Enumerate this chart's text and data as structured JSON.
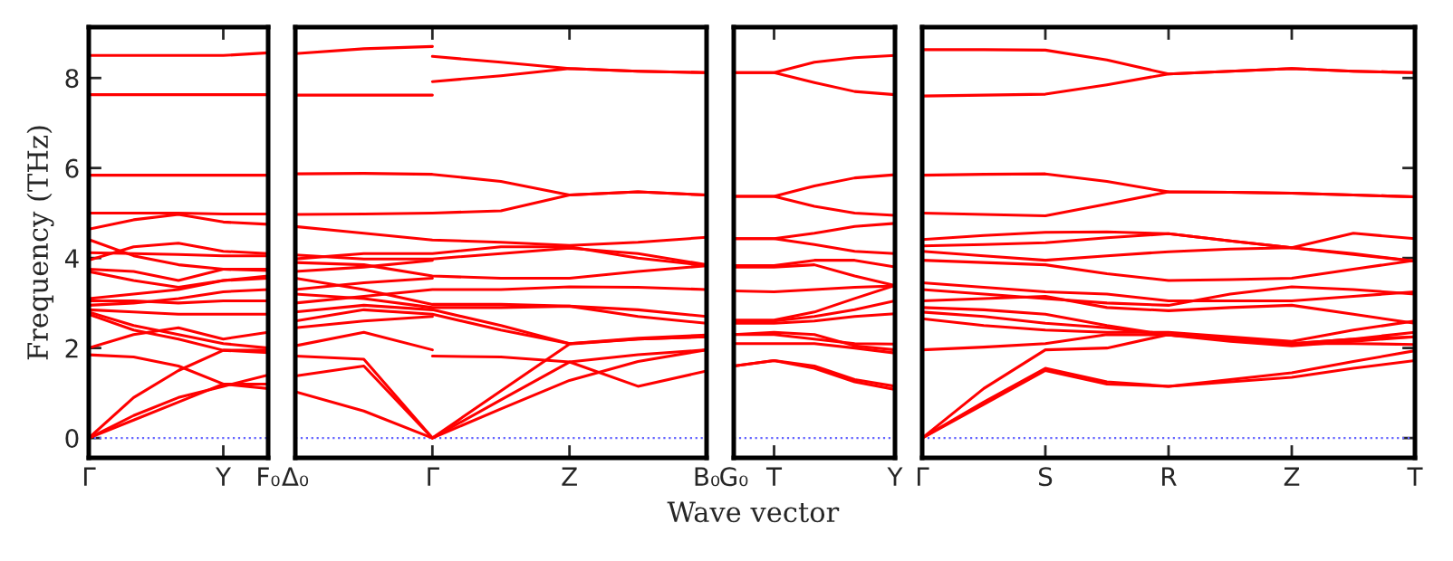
{
  "chart_data": [
    {
      "type": "line",
      "ylabel": "Frequency (THz)",
      "ylim": [
        -0.44,
        9.13
      ],
      "yticks": [
        0,
        2,
        4,
        6,
        8
      ],
      "categories": [
        "Γ",
        null,
        null,
        "Y",
        "F₀"
      ],
      "ref_lines": [
        {
          "axis": "y",
          "value": 0,
          "color": "#6666ff",
          "line_style": "dotted"
        }
      ],
      "series": [
        {
          "color": "#ff0000",
          "values": [
            8.5,
            8.5,
            8.5,
            8.5,
            8.56
          ]
        },
        {
          "color": "#ff0000",
          "values": [
            7.63,
            7.63,
            7.63,
            7.63,
            7.63
          ]
        },
        {
          "color": "#ff0000",
          "values": [
            5.84,
            5.84,
            5.84,
            5.84,
            5.84
          ]
        },
        {
          "color": "#ff0000",
          "values": [
            5.0,
            5.0,
            5.0,
            4.98,
            4.98
          ]
        },
        {
          "color": "#ff0000",
          "values": [
            4.64,
            4.85,
            4.97,
            4.8,
            4.75
          ]
        },
        {
          "color": "#ff0000",
          "values": [
            4.41,
            4.05,
            3.85,
            3.75,
            3.72
          ]
        },
        {
          "color": "#ff0000",
          "values": [
            3.95,
            4.25,
            4.33,
            4.15,
            4.1
          ]
        },
        {
          "color": "#ff0000",
          "values": [
            4.12,
            4.1,
            4.08,
            4.05,
            4.05
          ]
        },
        {
          "color": "#ff0000",
          "values": [
            3.75,
            3.7,
            3.5,
            3.75,
            3.75
          ]
        },
        {
          "color": "#ff0000",
          "values": [
            3.7,
            3.5,
            3.35,
            3.5,
            3.6
          ]
        },
        {
          "color": "#ff0000",
          "values": [
            3.1,
            3.2,
            3.3,
            3.5,
            3.55
          ]
        },
        {
          "color": "#ff0000",
          "values": [
            3.05,
            3.05,
            3.0,
            3.05,
            3.05
          ]
        },
        {
          "color": "#ff0000",
          "values": [
            2.95,
            3.0,
            3.1,
            3.25,
            3.3
          ]
        },
        {
          "color": "#ff0000",
          "values": [
            2.85,
            2.8,
            2.75,
            2.75,
            2.75
          ]
        },
        {
          "color": "#ff0000",
          "values": [
            2.8,
            2.5,
            2.3,
            2.1,
            2.0
          ]
        },
        {
          "color": "#ff0000",
          "values": [
            2.75,
            2.4,
            2.2,
            1.95,
            1.9
          ]
        },
        {
          "color": "#ff0000",
          "values": [
            2.0,
            2.3,
            2.45,
            2.2,
            2.35
          ]
        },
        {
          "color": "#ff0000",
          "values": [
            1.85,
            1.8,
            1.6,
            1.2,
            1.1
          ]
        },
        {
          "color": "#ff0000",
          "values": [
            0,
            0.9,
            1.5,
            1.95,
            1.95
          ]
        },
        {
          "color": "#ff0000",
          "values": [
            0,
            0.5,
            0.9,
            1.15,
            1.4
          ]
        },
        {
          "color": "#ff0000",
          "values": [
            0,
            0.4,
            0.8,
            1.2,
            1.2
          ]
        }
      ]
    },
    {
      "type": "line",
      "tick_labels": "x",
      "ylim": [
        -0.44,
        9.13
      ],
      "categories": [
        "Δ₀",
        null,
        "Γ",
        null,
        "Z",
        null,
        "B₀"
      ],
      "ref_lines": [
        {
          "axis": "y",
          "value": 0,
          "color": "#6666ff",
          "line_style": "dotted"
        }
      ],
      "series": [
        {
          "color": "#ff0000",
          "values": [
            8.54,
            8.65,
            8.7,
            null,
            null,
            null,
            null
          ]
        },
        {
          "color": "#ff0000",
          "values": [
            7.62,
            7.62,
            7.62,
            null,
            null,
            null,
            null
          ]
        },
        {
          "color": "#ff0000",
          "values": [
            null,
            null,
            8.48,
            8.35,
            8.21,
            8.15,
            8.12
          ]
        },
        {
          "color": "#ff0000",
          "values": [
            null,
            null,
            7.92,
            8.05,
            8.21,
            8.15,
            8.12
          ]
        },
        {
          "color": "#ff0000",
          "values": [
            5.87,
            5.88,
            5.86,
            5.7,
            5.4,
            5.47,
            5.4
          ]
        },
        {
          "color": "#ff0000",
          "values": [
            4.97,
            4.98,
            5.0,
            5.05,
            5.4,
            5.47,
            5.4
          ]
        },
        {
          "color": "#ff0000",
          "values": [
            4.7,
            4.55,
            4.4,
            4.35,
            4.28,
            4.35,
            4.46
          ]
        },
        {
          "color": "#ff0000",
          "values": [
            3.98,
            4.1,
            4.1,
            4.25,
            4.25,
            4.0,
            3.83
          ]
        },
        {
          "color": "#ff0000",
          "values": [
            4.07,
            3.98,
            3.98,
            4.1,
            4.22,
            4.1,
            3.85
          ]
        },
        {
          "color": "#ff0000",
          "values": [
            3.9,
            3.85,
            3.6,
            3.55,
            3.55,
            3.7,
            3.83
          ]
        },
        {
          "color": "#ff0000",
          "values": [
            3.7,
            3.8,
            3.95,
            null,
            null,
            null,
            null
          ]
        },
        {
          "color": "#ff0000",
          "values": [
            3.3,
            3.45,
            3.55,
            null,
            null,
            null,
            null
          ]
        },
        {
          "color": "#ff0000",
          "values": [
            3.0,
            3.15,
            3.3,
            3.3,
            3.36,
            3.35,
            3.3
          ]
        },
        {
          "color": "#ff0000",
          "values": [
            3.55,
            3.3,
            2.97,
            2.97,
            2.93,
            2.85,
            2.7
          ]
        },
        {
          "color": "#ff0000",
          "values": [
            3.2,
            3.1,
            2.9,
            2.9,
            2.93,
            2.7,
            2.55
          ]
        },
        {
          "color": "#ff0000",
          "values": [
            2.8,
            2.95,
            2.85,
            2.5,
            2.1,
            2.22,
            2.29
          ]
        },
        {
          "color": "#ff0000",
          "values": [
            2.6,
            2.85,
            2.75,
            2.4,
            2.1,
            2.2,
            2.25
          ]
        },
        {
          "color": "#ff0000",
          "values": [
            2.45,
            2.6,
            2.7,
            null,
            null,
            null,
            null
          ]
        },
        {
          "color": "#ff0000",
          "values": [
            2.05,
            2.35,
            1.96,
            null,
            null,
            null,
            null
          ]
        },
        {
          "color": "#ff0000",
          "values": [
            null,
            null,
            1.82,
            1.8,
            1.69,
            1.85,
            1.96
          ]
        },
        {
          "color": "#ff0000",
          "values": [
            1.82,
            1.75,
            0,
            1.05,
            2.09,
            2.2,
            2.25
          ]
        },
        {
          "color": "#ff0000",
          "values": [
            1.38,
            1.6,
            0,
            0.85,
            1.69,
            1.15,
            1.49
          ]
        },
        {
          "color": "#ff0000",
          "values": [
            1.03,
            0.6,
            0,
            0.65,
            1.28,
            1.7,
            1.96
          ]
        }
      ]
    },
    {
      "type": "line",
      "tick_labels": "x",
      "xlabel": "Wave vector",
      "ylim": [
        -0.44,
        9.13
      ],
      "categories": [
        "G₀",
        "T",
        null,
        null,
        "Y"
      ],
      "ref_lines": [
        {
          "axis": "y",
          "value": 0,
          "color": "#6666ff",
          "line_style": "dotted"
        }
      ],
      "series": [
        {
          "color": "#ff0000",
          "values": [
            8.12,
            8.12,
            8.35,
            8.45,
            8.5
          ]
        },
        {
          "color": "#ff0000",
          "values": [
            8.12,
            8.12,
            7.9,
            7.7,
            7.63
          ]
        },
        {
          "color": "#ff0000",
          "values": [
            5.37,
            5.37,
            5.6,
            5.78,
            5.85
          ]
        },
        {
          "color": "#ff0000",
          "values": [
            5.37,
            5.37,
            5.15,
            5.0,
            4.95
          ]
        },
        {
          "color": "#ff0000",
          "values": [
            4.43,
            4.43,
            4.55,
            4.7,
            4.77
          ]
        },
        {
          "color": "#ff0000",
          "values": [
            4.43,
            4.43,
            4.3,
            4.15,
            4.1
          ]
        },
        {
          "color": "#ff0000",
          "values": [
            3.83,
            3.83,
            3.95,
            3.95,
            3.8
          ]
        },
        {
          "color": "#ff0000",
          "values": [
            3.8,
            3.8,
            3.85,
            3.6,
            3.39
          ]
        },
        {
          "color": "#ff0000",
          "values": [
            3.27,
            3.25,
            3.3,
            3.35,
            3.38
          ]
        },
        {
          "color": "#ff0000",
          "values": [
            2.62,
            2.62,
            2.8,
            3.1,
            3.39
          ]
        },
        {
          "color": "#ff0000",
          "values": [
            2.58,
            2.6,
            2.7,
            2.85,
            3.05
          ]
        },
        {
          "color": "#ff0000",
          "values": [
            2.55,
            2.55,
            2.6,
            2.7,
            2.76
          ]
        },
        {
          "color": "#ff0000",
          "values": [
            2.3,
            2.3,
            2.2,
            2.1,
            2.09
          ]
        },
        {
          "color": "#ff0000",
          "values": [
            2.3,
            2.35,
            2.3,
            2.05,
            1.96
          ]
        },
        {
          "color": "#ff0000",
          "values": [
            2.1,
            2.1,
            2.1,
            2.0,
            1.89
          ]
        },
        {
          "color": "#ff0000",
          "values": [
            1.6,
            1.72,
            1.6,
            1.3,
            1.15
          ]
        },
        {
          "color": "#ff0000",
          "values": [
            1.6,
            1.72,
            1.55,
            1.25,
            1.08
          ]
        }
      ]
    },
    {
      "type": "line",
      "tick_labels": "x",
      "ylim": [
        -0.44,
        9.13
      ],
      "yticks": [
        0,
        2,
        4,
        6,
        8
      ],
      "categories": [
        "Γ",
        null,
        "S",
        null,
        "R",
        null,
        "Z",
        null,
        "T"
      ],
      "ref_lines": [
        {
          "axis": "y",
          "value": 0,
          "color": "#6666ff",
          "line_style": "dotted"
        }
      ],
      "series": [
        {
          "color": "#ff0000",
          "values": [
            8.63,
            8.63,
            8.62,
            8.4,
            8.09,
            8.15,
            8.21,
            8.15,
            8.12
          ]
        },
        {
          "color": "#ff0000",
          "values": [
            7.6,
            7.62,
            7.64,
            7.85,
            8.09,
            8.15,
            8.21,
            8.15,
            8.12
          ]
        },
        {
          "color": "#ff0000",
          "values": [
            5.84,
            5.86,
            5.87,
            5.7,
            5.47,
            5.46,
            5.44,
            5.4,
            5.36
          ]
        },
        {
          "color": "#ff0000",
          "values": [
            5.0,
            4.97,
            4.94,
            5.2,
            5.47,
            5.46,
            5.44,
            5.4,
            5.36
          ]
        },
        {
          "color": "#ff0000",
          "values": [
            4.41,
            4.5,
            4.57,
            4.58,
            4.54,
            4.38,
            4.23,
            4.55,
            4.43
          ]
        },
        {
          "color": "#ff0000",
          "values": [
            4.27,
            4.3,
            4.34,
            4.45,
            4.54,
            4.38,
            4.23,
            4.08,
            3.93
          ]
        },
        {
          "color": "#ff0000",
          "values": [
            4.15,
            4.05,
            3.95,
            4.05,
            4.14,
            4.2,
            4.23,
            4.1,
            3.93
          ]
        },
        {
          "color": "#ff0000",
          "values": [
            3.95,
            3.9,
            3.85,
            3.65,
            3.5,
            3.52,
            3.55,
            3.75,
            3.95
          ]
        },
        {
          "color": "#ff0000",
          "values": [
            3.45,
            3.35,
            3.25,
            3.2,
            3.05,
            3.05,
            3.05,
            3.15,
            3.25
          ]
        },
        {
          "color": "#ff0000",
          "values": [
            3.3,
            3.2,
            3.1,
            3.0,
            2.95,
            3.2,
            3.36,
            3.3,
            3.2
          ]
        },
        {
          "color": "#ff0000",
          "values": [
            3.05,
            3.1,
            3.15,
            2.9,
            2.83,
            2.9,
            2.95,
            2.75,
            2.55
          ]
        },
        {
          "color": "#ff0000",
          "values": [
            2.9,
            2.85,
            2.75,
            2.5,
            2.29,
            2.15,
            2.05,
            2.15,
            2.25
          ]
        },
        {
          "color": "#ff0000",
          "values": [
            2.8,
            2.7,
            2.55,
            2.45,
            2.29,
            2.2,
            2.1,
            2.2,
            2.35
          ]
        },
        {
          "color": "#ff0000",
          "values": [
            2.65,
            2.5,
            2.4,
            2.35,
            2.35,
            2.25,
            2.15,
            2.4,
            2.6
          ]
        },
        {
          "color": "#ff0000",
          "values": [
            1.96,
            2.02,
            2.1,
            2.3,
            2.29,
            2.2,
            2.1,
            2.2,
            2.25
          ]
        },
        {
          "color": "#ff0000",
          "values": [
            0,
            1.1,
            1.96,
            2.0,
            2.3,
            2.2,
            2.1,
            2.1,
            2.08
          ]
        },
        {
          "color": "#ff0000",
          "values": [
            0,
            0.8,
            1.55,
            1.25,
            1.15,
            1.25,
            1.35,
            1.55,
            1.72
          ]
        },
        {
          "color": "#ff0000",
          "values": [
            0,
            0.75,
            1.5,
            1.2,
            1.15,
            1.3,
            1.45,
            1.7,
            1.94
          ]
        }
      ]
    }
  ]
}
